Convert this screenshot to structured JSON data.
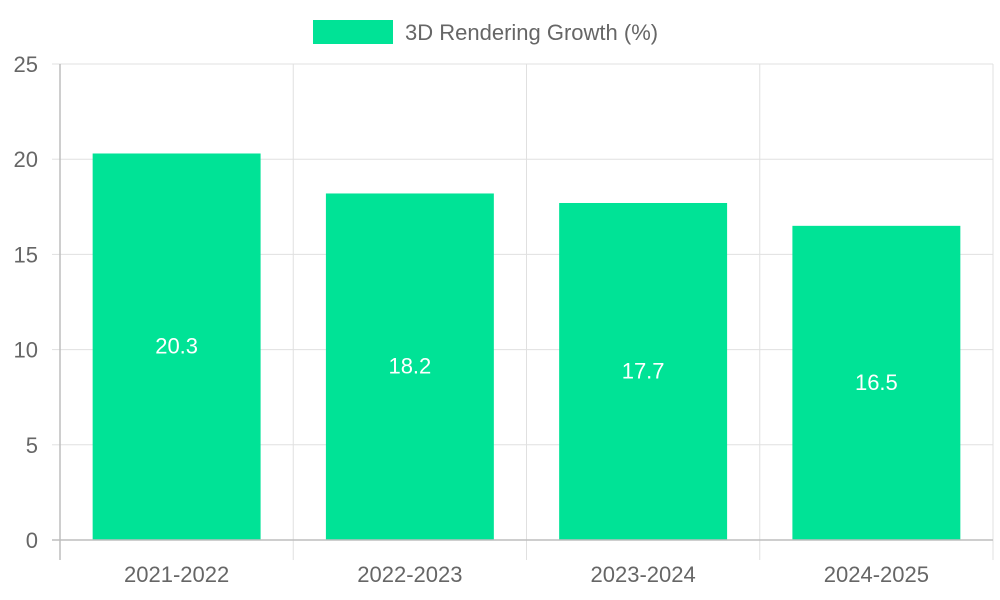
{
  "chart_data": {
    "type": "bar",
    "categories": [
      "2021-2022",
      "2022-2023",
      "2023-2024",
      "2024-2025"
    ],
    "series": [
      {
        "name": "3D Rendering Growth (%)",
        "values": [
          20.3,
          18.2,
          17.7,
          16.5
        ],
        "color": "#00e396"
      }
    ],
    "data_labels": [
      "20.3",
      "18.2",
      "17.7",
      "16.5"
    ],
    "y_ticks": [
      "0",
      "5",
      "10",
      "15",
      "20",
      "25"
    ],
    "ylim": [
      0,
      25
    ],
    "legend": "top-center",
    "grid": true,
    "colors": {
      "grid": "#e0e0e0",
      "axis": "#bdbdbd",
      "text": "#666666",
      "label": "#ffffff"
    }
  }
}
